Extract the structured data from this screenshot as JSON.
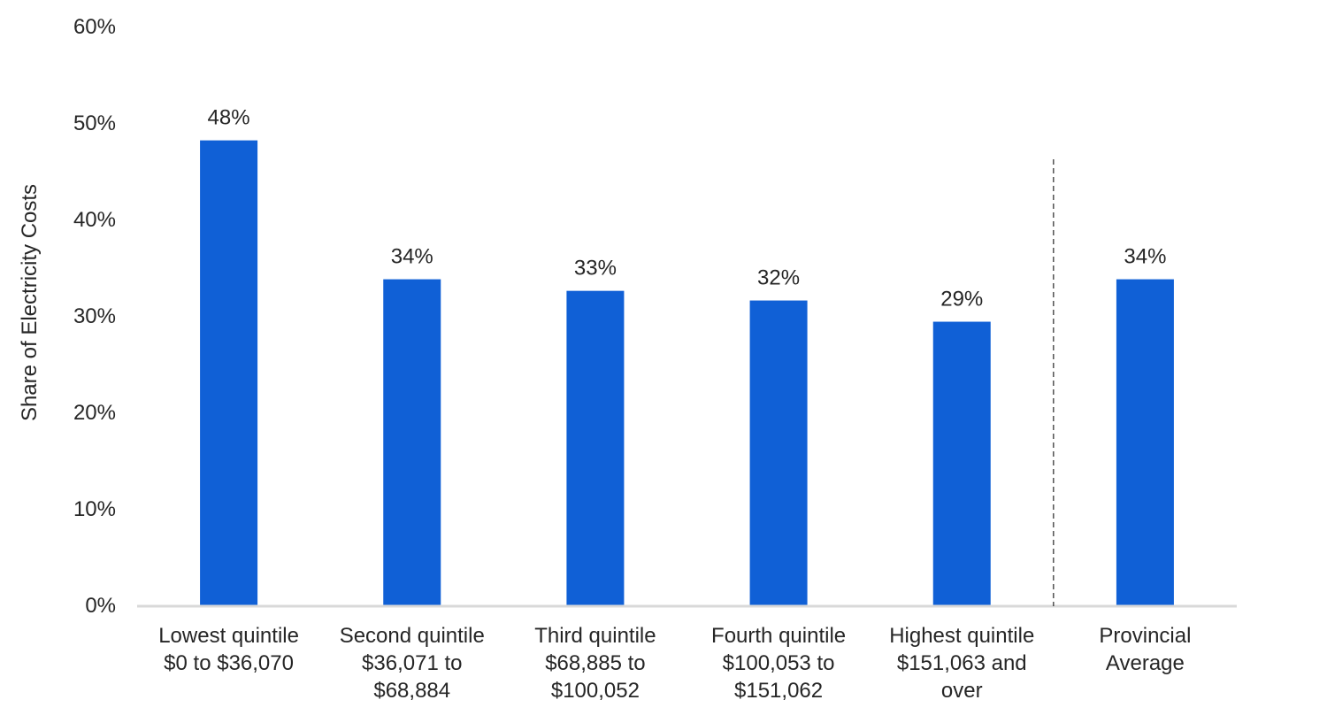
{
  "chart_data": {
    "type": "bar",
    "ylabel": "Share of Electricity Costs",
    "ylim": [
      0,
      60
    ],
    "yticks": [
      0,
      10,
      20,
      30,
      40,
      50,
      60
    ],
    "ytick_labels": [
      "0%",
      "10%",
      "20%",
      "30%",
      "40%",
      "50%",
      "60%"
    ],
    "categories": [
      [
        "Lowest quintile",
        "$0 to $36,070"
      ],
      [
        "Second quintile",
        "$36,071 to",
        "$68,884"
      ],
      [
        "Third quintile",
        "$68,885 to",
        "$100,052"
      ],
      [
        "Fourth quintile",
        "$100,053 to",
        "$151,062"
      ],
      [
        "Highest quintile",
        "$151,063 and",
        "over"
      ],
      [
        "Provincial",
        "Average"
      ]
    ],
    "values": [
      48.2,
      33.8,
      32.6,
      31.6,
      29.4,
      33.8
    ],
    "data_labels": [
      "48%",
      "34%",
      "33%",
      "32%",
      "29%",
      "34%"
    ],
    "bar_color": "#1060d6",
    "separator_before_index": 5,
    "grid": false,
    "legend": "none"
  }
}
